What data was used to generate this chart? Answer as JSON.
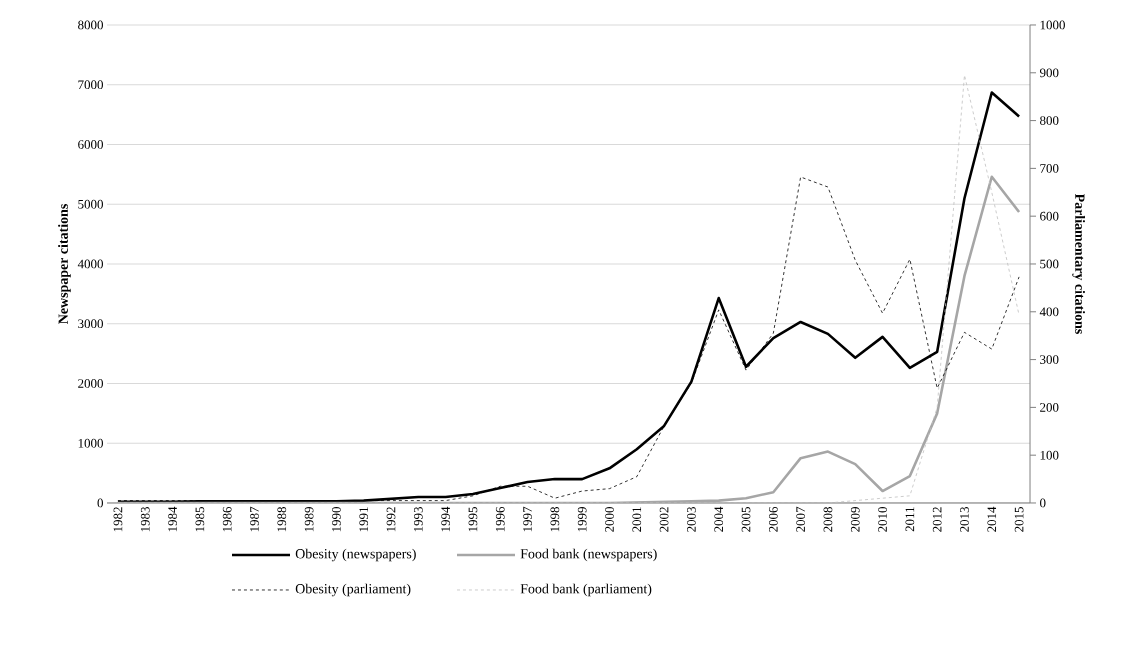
{
  "chart_data": {
    "type": "line",
    "ylabel": "Newspaper citations",
    "y2label": "Parliamentary citations",
    "categories": [
      "1982",
      "1983",
      "1984",
      "1985",
      "1986",
      "1987",
      "1988",
      "1989",
      "1990",
      "1991",
      "1992",
      "1993",
      "1994",
      "1995",
      "1996",
      "1997",
      "1998",
      "1999",
      "2000",
      "2001",
      "2002",
      "2003",
      "2004",
      "2005",
      "2006",
      "2007",
      "2008",
      "2009",
      "2010",
      "2011",
      "2012",
      "2013",
      "2014",
      "2015"
    ],
    "ylim": [
      0,
      8000
    ],
    "yticks": [
      0,
      1000,
      2000,
      3000,
      4000,
      5000,
      6000,
      7000,
      8000
    ],
    "y2lim": [
      0,
      1000
    ],
    "y2ticks": [
      0,
      100,
      200,
      300,
      400,
      500,
      600,
      700,
      800,
      900,
      1000
    ],
    "grid": "y",
    "legend": "bottom",
    "marker": "none",
    "series": [
      {
        "name": "Obesity (newspapers)",
        "color": "#000000",
        "line_style": "solid",
        "values": [
          20,
          20,
          20,
          30,
          30,
          30,
          30,
          30,
          30,
          40,
          70,
          100,
          100,
          150,
          250,
          350,
          400,
          400,
          580,
          900,
          1290,
          2030,
          3430,
          2280,
          2760,
          3030,
          2830,
          2430,
          2780,
          2260,
          2530,
          5100,
          6870,
          6470
        ]
      },
      {
        "name": "Food bank (newspapers)",
        "color": "#a6a6a6",
        "line_style": "solid",
        "values": [
          0,
          0,
          0,
          0,
          0,
          0,
          0,
          0,
          0,
          0,
          0,
          0,
          0,
          0,
          0,
          0,
          0,
          0,
          0,
          10,
          20,
          30,
          40,
          80,
          180,
          750,
          860,
          650,
          200,
          450,
          1500,
          3800,
          5460,
          4870
        ]
      },
      {
        "name": "Obesity (parliament)",
        "color": "#000000",
        "line_style": "dashed",
        "axis": "y2",
        "values": [
          5,
          5,
          5,
          5,
          5,
          5,
          5,
          5,
          5,
          5,
          5,
          5,
          5,
          15,
          35,
          35,
          10,
          25,
          30,
          55,
          161,
          251,
          404,
          278,
          355,
          682,
          661,
          508,
          397,
          510,
          240,
          357,
          322,
          473
        ]
      },
      {
        "name": "Food bank (parliament)",
        "color": "#bfbfbf",
        "line_style": "dashed",
        "axis": "y2",
        "values": [
          0,
          0,
          0,
          0,
          0,
          0,
          0,
          0,
          0,
          0,
          0,
          0,
          0,
          0,
          0,
          0,
          0,
          0,
          0,
          0,
          0,
          0,
          0,
          0,
          0,
          0,
          0,
          5,
          10,
          15,
          200,
          895,
          650,
          393
        ]
      }
    ]
  }
}
